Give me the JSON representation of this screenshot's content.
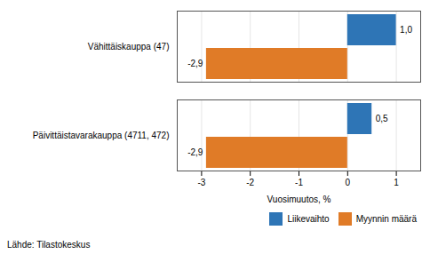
{
  "chart_data": {
    "type": "bar",
    "orientation": "horizontal",
    "categories": [
      "Päivittäistavarakauppa (4711, 472)",
      "Vähittäiskauppa (47)"
    ],
    "series": [
      {
        "name": "Liikevaihto",
        "color": "#2e75b6",
        "values": [
          0.5,
          1.0
        ],
        "value_labels": [
          "0,5",
          "1,0"
        ]
      },
      {
        "name": "Myynnin määrä",
        "color": "#e07b27",
        "values": [
          -2.9,
          -2.9
        ],
        "value_labels": [
          "-2,9",
          "-2,9"
        ]
      }
    ],
    "xlabel": "Vuosimuutos, %",
    "xlim": [
      -3.5,
      1.5
    ],
    "xticks": [
      -3,
      -2,
      -1,
      0,
      1
    ],
    "grid": true,
    "legend": "lower right",
    "data_labels": true,
    "caption": "Lähde: Tilastokeskus"
  }
}
